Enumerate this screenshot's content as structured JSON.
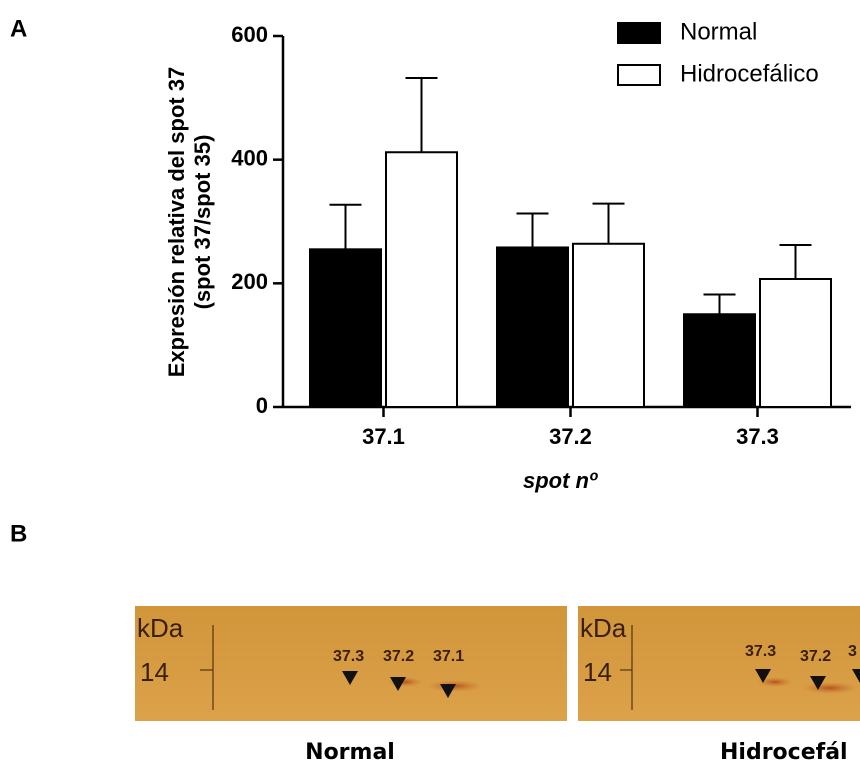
{
  "panel_labels": [
    "A",
    "B"
  ],
  "chart_data": {
    "type": "bar",
    "y_label": [
      "Expresión relativa del spot 37",
      "(spot 37/spot 35)"
    ],
    "x_label": "spot nº",
    "categories": [
      "37.1",
      "37.2",
      "37.3"
    ],
    "series": [
      {
        "name": "Normal",
        "color": "#000000",
        "values": [
          255,
          258,
          150
        ],
        "errors": [
          72,
          55,
          32
        ]
      },
      {
        "name": "Hidrocefálico",
        "color": "#ffffff",
        "values": [
          412,
          264,
          207
        ],
        "errors": [
          120,
          65,
          55
        ]
      }
    ],
    "ylim": [
      0,
      600
    ],
    "yticks": [
      0,
      200,
      400,
      600
    ],
    "legend": "top-right"
  },
  "gels": [
    {
      "label": "Normal",
      "unit": "kDa",
      "marker": "14",
      "spots": [
        "37.3",
        "37.2",
        "37.1"
      ]
    },
    {
      "label": "Hidrocefál",
      "unit": "kDa",
      "marker": "14",
      "spots": [
        "37.3",
        "37.2",
        "3"
      ]
    }
  ]
}
